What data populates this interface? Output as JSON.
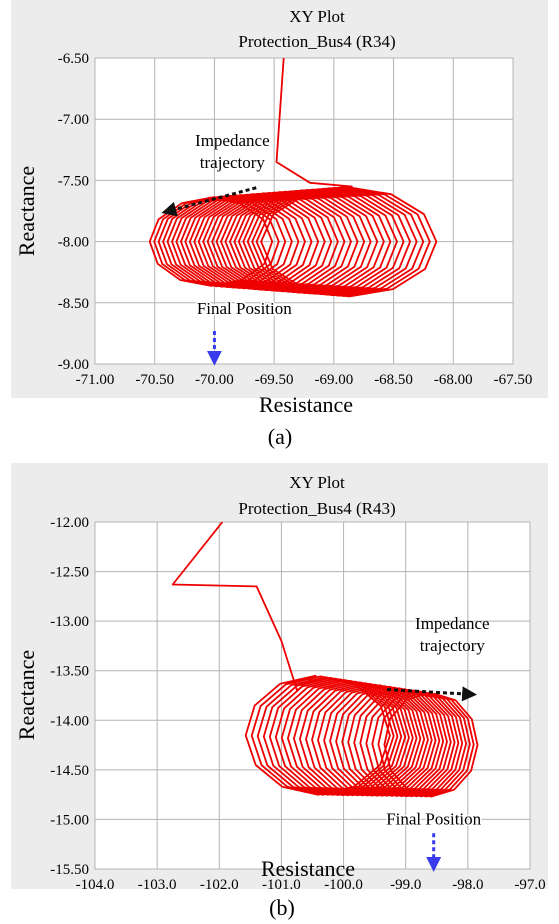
{
  "colors": {
    "panel_background": "#ececec",
    "plot_background": "#ffffff",
    "grid": "#b4b4b4",
    "trajectory": "#ee0000",
    "trajectory_arrow": "#111111",
    "final_arrow": "#3a3aee"
  },
  "chart_data": [
    {
      "type": "line",
      "title": "XY Plot",
      "subtitle": "Protection_Bus4 (R34)",
      "xlabel": "Resistance",
      "ylabel": "Reactance",
      "caption": "(a)",
      "xlim": [
        -71.0,
        -67.5
      ],
      "ylim": [
        -9.0,
        -6.5
      ],
      "xticks": [
        -71.0,
        -70.5,
        -70.0,
        -69.5,
        -69.0,
        -68.5,
        -68.0,
        -67.5
      ],
      "xtick_labels": [
        "-71.00",
        "-70.50",
        "-70.00",
        "-69.50",
        "-69.00",
        "-68.50",
        "-68.00",
        "-67.50"
      ],
      "yticks": [
        -9.0,
        -8.5,
        -8.0,
        -7.5,
        -7.0,
        -6.5
      ],
      "ytick_labels": [
        "-9.00",
        "-8.50",
        "-8.00",
        "-7.50",
        "-7.00",
        "-6.50"
      ],
      "grid": true,
      "legend": "none",
      "series": [
        {
          "lead_in": [
            [
              -69.42,
              -6.5
            ],
            [
              -69.48,
              -7.35
            ],
            [
              -69.2,
              -7.52
            ]
          ],
          "spiral": {
            "center_start": [
              -68.85,
              -8.0
            ],
            "center_end": [
              -70.05,
              -8.0
            ],
            "radius_x_start": 0.75,
            "radius_x_end": 0.52,
            "radius_y_start": 0.45,
            "radius_y_end": 0.36,
            "turns": 26
          }
        }
      ],
      "annotations": [
        {
          "text_lines": [
            "Impedance",
            "trajectory"
          ],
          "anchor": [
            -69.85,
            -7.22
          ],
          "arrow_from": [
            -69.65,
            -7.56
          ],
          "arrow_to": [
            -70.42,
            -7.76
          ]
        },
        {
          "text_lines": [
            "Final Position"
          ],
          "anchor": [
            -69.75,
            -8.59
          ],
          "arrow_from": [
            -70.0,
            -8.73
          ],
          "arrow_to": [
            -70.0,
            -8.99
          ]
        }
      ]
    },
    {
      "type": "line",
      "title": "XY Plot",
      "subtitle": "Protection_Bus4 (R43)",
      "xlabel": "Resistance",
      "ylabel": "Reactance",
      "caption": "(b)",
      "xlim": [
        -104.0,
        -97.0
      ],
      "ylim": [
        -15.5,
        -12.0
      ],
      "xticks": [
        -104.0,
        -103.0,
        -102.0,
        -101.0,
        -100.0,
        -99.0,
        -98.0,
        -97.0
      ],
      "xtick_labels": [
        "-104.0",
        "-103.0",
        "-102.0",
        "-101.0",
        "-100.0",
        "-99.0",
        "-98.0",
        "-97.0"
      ],
      "yticks": [
        -15.5,
        -15.0,
        -14.5,
        -14.0,
        -13.5,
        -13.0,
        -12.5,
        -12.0
      ],
      "ytick_labels": [
        "-15.50",
        "-15.00",
        "-14.50",
        "-14.00",
        "-13.50",
        "-13.00",
        "-12.50",
        "-12.00"
      ],
      "grid": true,
      "legend": "none",
      "series": [
        {
          "lead_in": [
            [
              -101.95,
              -12.0
            ],
            [
              -102.75,
              -12.63
            ],
            [
              -101.4,
              -12.65
            ],
            [
              -101.0,
              -13.2
            ],
            [
              -100.75,
              -13.7
            ]
          ],
          "spiral": {
            "center_start": [
              -100.45,
              -14.15
            ],
            "center_end": [
              -98.55,
              -14.25
            ],
            "radius_x_start": 1.15,
            "radius_x_end": 0.72,
            "radius_y_start": 0.6,
            "radius_y_end": 0.52,
            "turns": 24
          }
        }
      ],
      "annotations": [
        {
          "text_lines": [
            "Impedance",
            "trajectory"
          ],
          "anchor": [
            -98.25,
            -13.08
          ],
          "arrow_from": [
            -99.3,
            -13.69
          ],
          "arrow_to": [
            -97.9,
            -13.74
          ]
        },
        {
          "text_lines": [
            "Final Position"
          ],
          "anchor": [
            -98.55,
            -15.05
          ],
          "arrow_from": [
            -98.55,
            -15.14
          ],
          "arrow_to": [
            -98.55,
            -15.5
          ]
        }
      ]
    }
  ]
}
